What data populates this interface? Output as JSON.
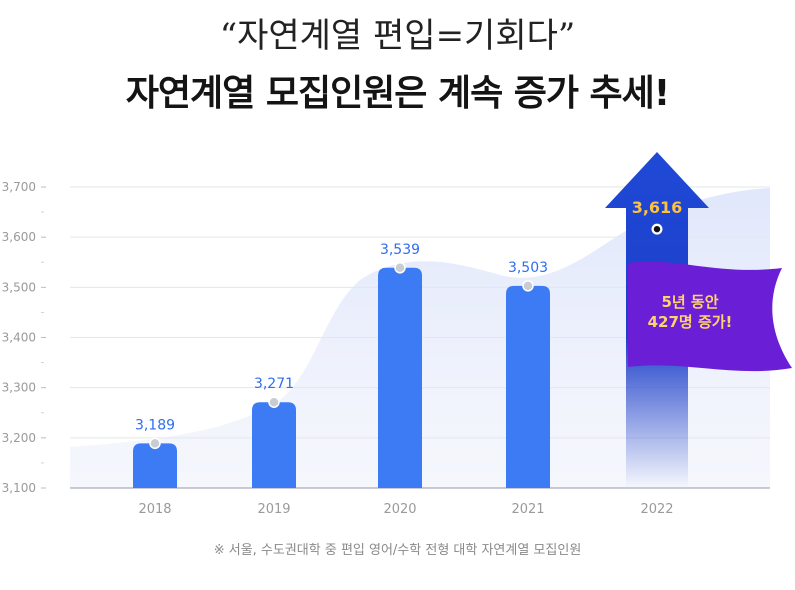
{
  "header": {
    "subtitle": "“자연계열 편입=기회다”",
    "title": "자연계열 모집인원은 계속 증가 추세!"
  },
  "chart_data": {
    "type": "bar",
    "categories": [
      "2018",
      "2019",
      "2020",
      "2021",
      "2022"
    ],
    "values": [
      3189,
      3271,
      3539,
      3503,
      3616
    ],
    "data_labels": [
      "3,189",
      "3,271",
      "3,539",
      "3,503",
      "3,616"
    ],
    "ylim": [
      3100,
      3700
    ],
    "yticks": [
      3100,
      3200,
      3300,
      3400,
      3500,
      3600,
      3700
    ],
    "ytick_labels": [
      "3,100",
      "3,200",
      "3,300",
      "3,400",
      "3,500",
      "3,600",
      "3,700"
    ],
    "grid": true,
    "highlight_category": "2022",
    "annotation": [
      "5년 동안",
      "427명 증가!"
    ]
  },
  "colors": {
    "bar": "#3d7bf5",
    "highlight": "#1f49d6",
    "flag": "#6a1fd6",
    "flag_text": "#ffd36b",
    "highlight_label": "#ffc23a",
    "label": "#2f6ef0",
    "axis_text": "#9a9a9a"
  },
  "footnote": "※ 서울, 수도권대학 중 편입 영어/수학 전형 대학 자연계열 모집인원"
}
